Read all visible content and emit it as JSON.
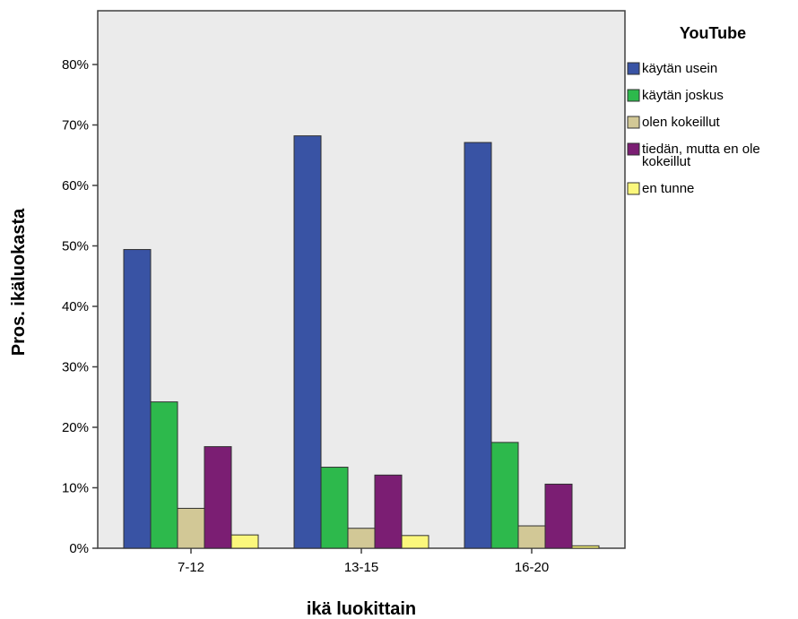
{
  "chart_data": {
    "type": "bar",
    "title": "",
    "xlabel": "ikä luokittain",
    "ylabel": "Pros. ikäluokasta",
    "ylim": [
      0,
      88
    ],
    "yticks": [
      0,
      10,
      20,
      30,
      40,
      50,
      60,
      70,
      80
    ],
    "ytick_suffix": "%",
    "grid": false,
    "categories": [
      "7-12",
      "13-15",
      "16-20"
    ],
    "legend": {
      "title": "YouTube",
      "placement": "right"
    },
    "series": [
      {
        "name": "käytän usein",
        "color": "#3953a4",
        "values": [
          49.4,
          68.2,
          67.1
        ]
      },
      {
        "name": "käytän joskus",
        "color": "#2db94c",
        "values": [
          24.2,
          13.4,
          17.5
        ]
      },
      {
        "name": "olen kokeillut",
        "color": "#d2c896",
        "values": [
          6.6,
          3.3,
          3.7
        ]
      },
      {
        "name_lines": [
          "tiedän, mutta en ole",
          "kokeillut"
        ],
        "color": "#7b1e73",
        "values": [
          16.8,
          12.1,
          10.6
        ]
      },
      {
        "name": "en tunne",
        "color": "#fbf77c",
        "values": [
          2.2,
          2.1,
          0.4
        ]
      }
    ],
    "colors": {
      "plot_background": "#ebebeb",
      "axis": "#404040"
    }
  }
}
